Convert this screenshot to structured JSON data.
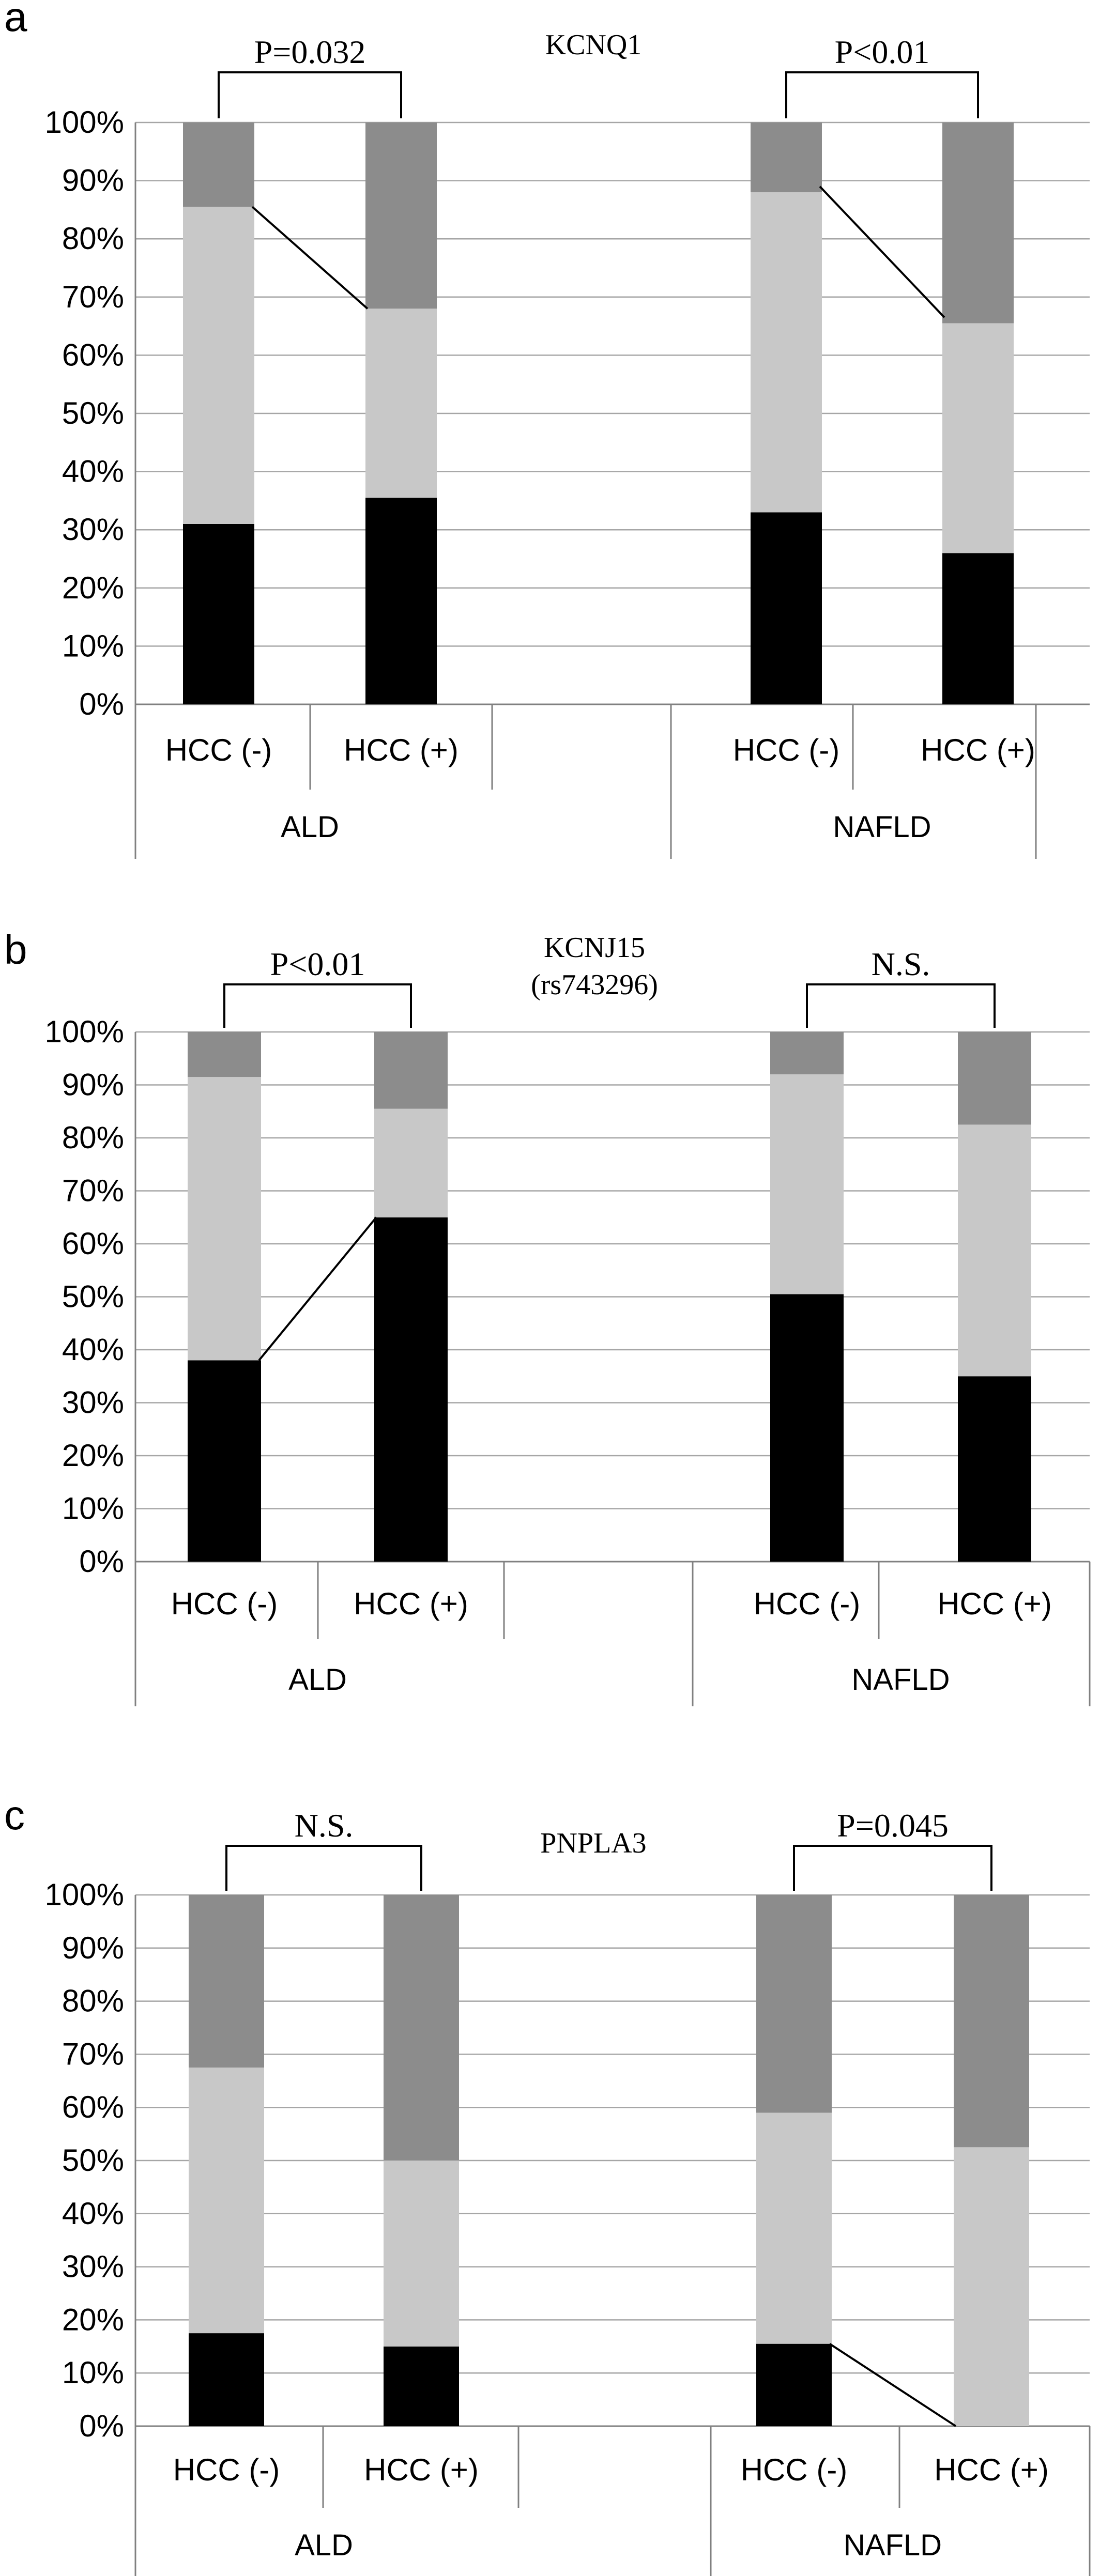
{
  "colors": {
    "bottom": "#000000",
    "middle": "#c8c8c8",
    "top": "#8c8c8c",
    "grid": "#a6a6a6",
    "axis": "#808080"
  },
  "chart_data": [
    {
      "type": "bar",
      "panel": "a",
      "title": [
        "KCNQ1"
      ],
      "ylim": [
        0,
        100
      ],
      "yticks": [
        "0%",
        "10%",
        "20%",
        "30%",
        "40%",
        "50%",
        "60%",
        "70%",
        "80%",
        "90%",
        "100%"
      ],
      "groups": [
        "ALD",
        "NAFLD"
      ],
      "categories": [
        "HCC (-)",
        "HCC (+)",
        "HCC (-)",
        "HCC (+)"
      ],
      "category_group": [
        0,
        0,
        1,
        1
      ],
      "series": [
        {
          "values": [
            31,
            35.5,
            33,
            26
          ]
        },
        {
          "values": [
            54.5,
            32.5,
            55,
            39.5
          ]
        },
        {
          "values": [
            14.5,
            32,
            12,
            34.5
          ]
        }
      ],
      "significance": [
        {
          "label": "P=0.032",
          "between": [
            0,
            1
          ]
        },
        {
          "label": "P<0.01",
          "between": [
            2,
            3
          ]
        }
      ],
      "connectors": [
        {
          "from": [
            0,
            85.5
          ],
          "to": [
            1,
            68
          ]
        },
        {
          "from": [
            2,
            89
          ],
          "to": [
            3,
            66.5
          ]
        }
      ],
      "grid": true
    },
    {
      "type": "bar",
      "panel": "b",
      "title": [
        "KCNJ15",
        "(rs743296)"
      ],
      "ylim": [
        0,
        100
      ],
      "yticks": [
        "0%",
        "10%",
        "20%",
        "30%",
        "40%",
        "50%",
        "60%",
        "70%",
        "80%",
        "90%",
        "100%"
      ],
      "groups": [
        "ALD",
        "NAFLD"
      ],
      "categories": [
        "HCC (-)",
        "HCC (+)",
        "HCC (-)",
        "HCC (+)"
      ],
      "category_group": [
        0,
        0,
        1,
        1
      ],
      "series": [
        {
          "values": [
            38,
            65,
            50.5,
            35
          ]
        },
        {
          "values": [
            53.5,
            20.5,
            41.5,
            47.5
          ]
        },
        {
          "values": [
            8.5,
            14.5,
            8,
            17.5
          ]
        }
      ],
      "significance": [
        {
          "label": "P<0.01",
          "between": [
            0,
            1
          ]
        },
        {
          "label": "N.S.",
          "between": [
            2,
            3
          ]
        }
      ],
      "connectors": [
        {
          "from": [
            0,
            38
          ],
          "to": [
            1,
            65
          ]
        }
      ],
      "grid": true
    },
    {
      "type": "bar",
      "panel": "c",
      "title": [
        "PNPLA3"
      ],
      "ylim": [
        0,
        100
      ],
      "yticks": [
        "0%",
        "10%",
        "20%",
        "30%",
        "40%",
        "50%",
        "60%",
        "70%",
        "80%",
        "90%",
        "100%"
      ],
      "groups": [
        "ALD",
        "NAFLD"
      ],
      "categories": [
        "HCC (-)",
        "HCC (+)",
        "HCC (-)",
        "HCC (+)"
      ],
      "category_group": [
        0,
        0,
        1,
        1
      ],
      "series": [
        {
          "values": [
            17.5,
            15,
            15.5,
            0
          ]
        },
        {
          "values": [
            50,
            35,
            43.5,
            52.5
          ]
        },
        {
          "values": [
            32.5,
            50,
            41,
            47.5
          ]
        }
      ],
      "significance": [
        {
          "label": "N.S.",
          "between": [
            0,
            1
          ]
        },
        {
          "label": "P=0.045",
          "between": [
            2,
            3
          ]
        }
      ],
      "connectors": [
        {
          "from": [
            2,
            15.5
          ],
          "to": [
            3,
            0
          ]
        }
      ],
      "grid": true
    }
  ]
}
